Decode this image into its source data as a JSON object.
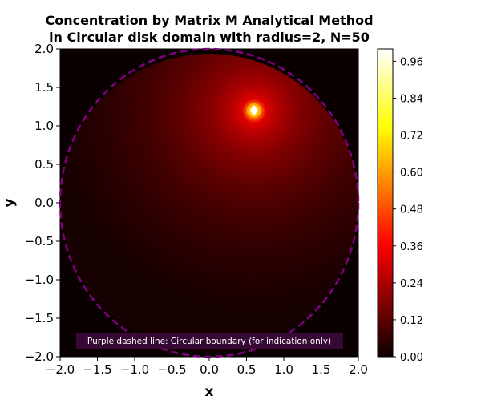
{
  "chart_data": {
    "type": "heatmap",
    "title_lines": [
      "Concentration by Matrix M Analytical Method",
      "in Circular disk domain with radius=2, N=50"
    ],
    "xlabel": "x",
    "ylabel": "y",
    "xlim": [
      -2.0,
      2.0
    ],
    "ylim": [
      -2.0,
      2.0
    ],
    "x_ticks": [
      "−2.0",
      "−1.5",
      "−1.0",
      "−0.5",
      "0.0",
      "0.5",
      "1.0",
      "1.5",
      "2.0"
    ],
    "y_ticks": [
      "2.0",
      "1.5",
      "1.0",
      "0.5",
      "0.0",
      "−0.5",
      "−1.0",
      "−1.5",
      "−2.0"
    ],
    "x_tick_values": [
      -2.0,
      -1.5,
      -1.0,
      -0.5,
      0.0,
      0.5,
      1.0,
      1.5,
      2.0
    ],
    "y_tick_values": [
      2.0,
      1.5,
      1.0,
      0.5,
      0.0,
      -0.5,
      -1.0,
      -1.5,
      -2.0
    ],
    "colormap": "hot",
    "color_range": [
      0.0,
      1.0
    ],
    "colorbar_ticks": [
      "0.96",
      "0.84",
      "0.72",
      "0.60",
      "0.48",
      "0.36",
      "0.24",
      "0.12",
      "0.00"
    ],
    "colorbar_tick_values": [
      0.96,
      0.84,
      0.72,
      0.6,
      0.48,
      0.36,
      0.24,
      0.12,
      0.0
    ],
    "source_point": {
      "x": 0.6,
      "y": 1.2,
      "value": 1.0
    },
    "boundary": {
      "type": "circle",
      "center": [
        0.0,
        0.0
      ],
      "radius": 2.0,
      "style": "dashed",
      "color": "#800080"
    },
    "annotation": "Purple dashed line: Circular boundary (for indication only)",
    "grid": false
  },
  "colors": {
    "boundary": "#800080",
    "annotation_bg": "#3a0a3a",
    "background_min": "#0b0000"
  }
}
